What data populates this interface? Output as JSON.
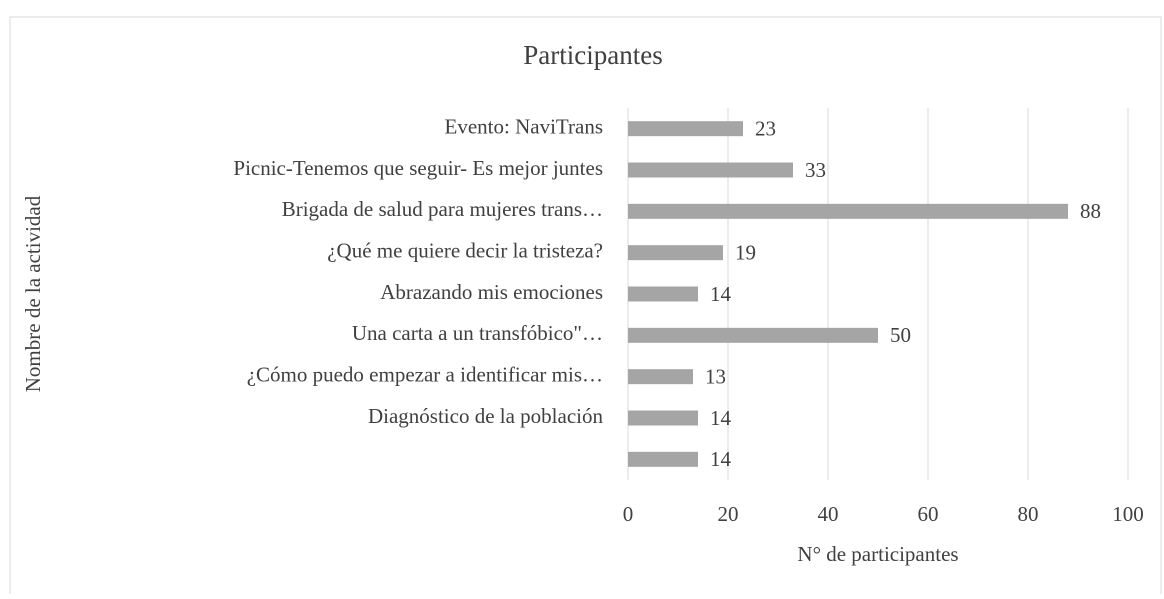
{
  "chart_data": {
    "type": "barh",
    "title": "Participantes",
    "xlabel": "N° de participantes",
    "ylabel": "Nombre de la actividad",
    "categories": [
      "Evento: NaviTrans",
      "Picnic-Tenemos que seguir- Es mejor juntes",
      "Brigada de salud para mujeres trans…",
      "¿Qué me quiere decir la tristeza?",
      "Abrazando mis emociones",
      "Una carta a un transfóbico\"…",
      "¿Cómo puedo empezar a identificar mis…",
      "Diagnóstico de la población",
      null
    ],
    "values": [
      23,
      33,
      88,
      19,
      14,
      50,
      13,
      14,
      14
    ],
    "color": "#a5a5a5",
    "xlim": [
      0,
      100
    ],
    "xticks": [
      0,
      20,
      40,
      60,
      80,
      100
    ],
    "grid": true
  }
}
